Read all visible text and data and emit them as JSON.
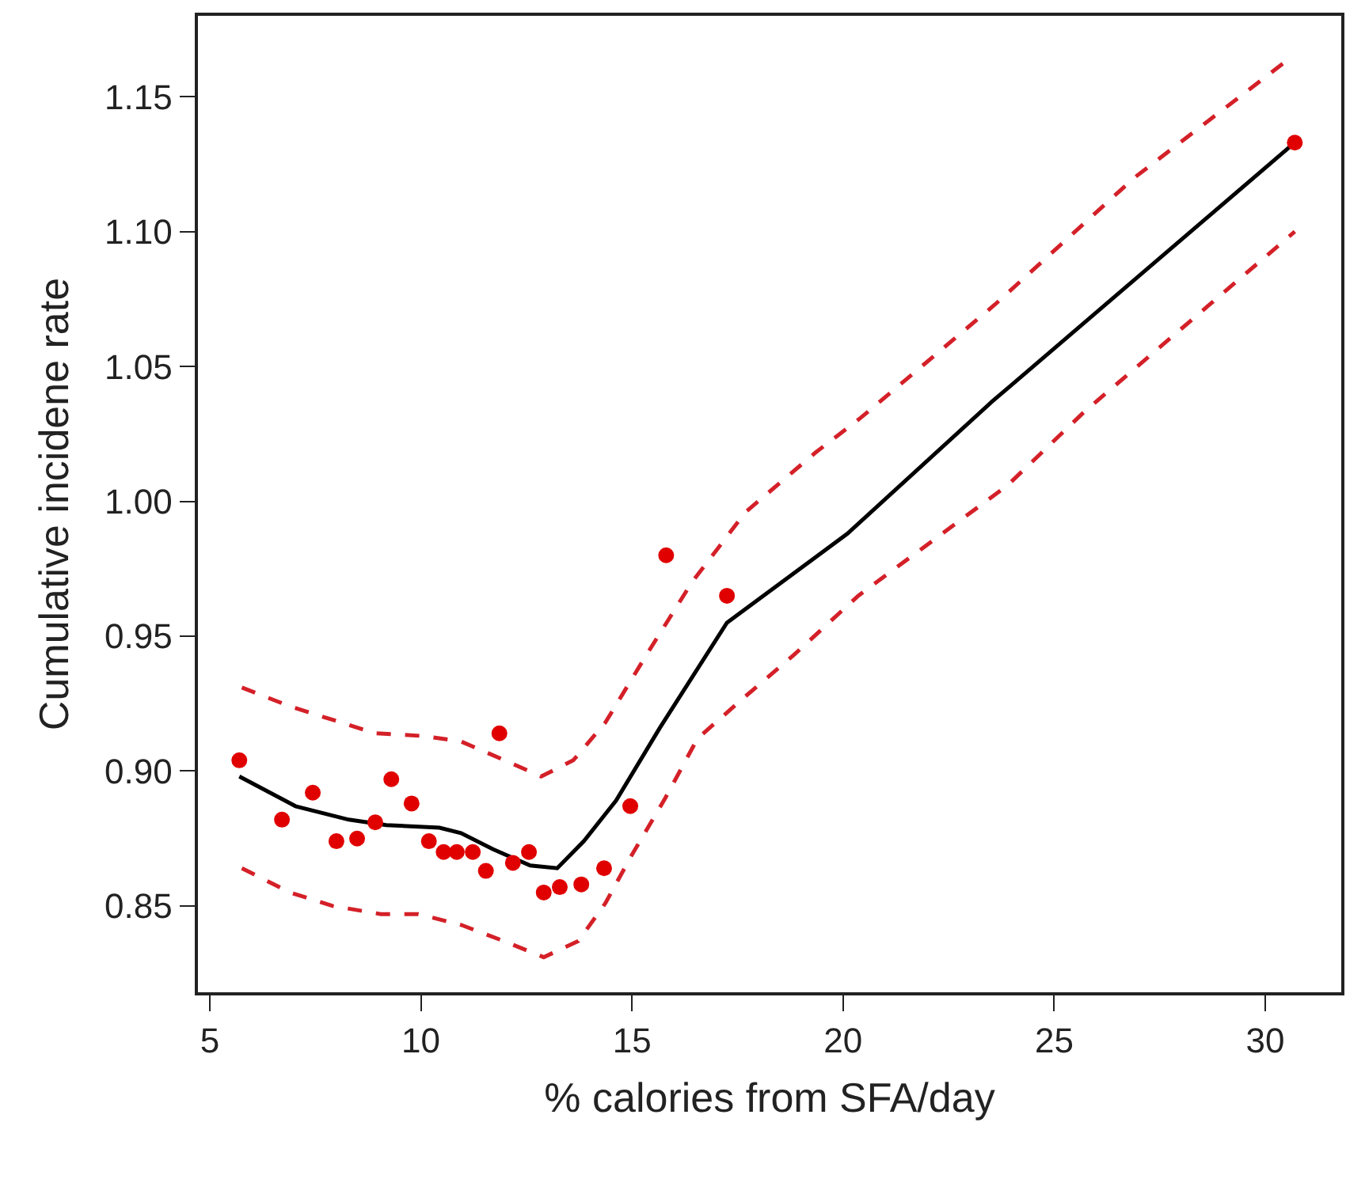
{
  "chart_data": {
    "type": "scatter",
    "xlabel": "% calories from SFA/day",
    "ylabel": "Cumulative incidene rate",
    "xlim": [
      4.72,
      31.8
    ],
    "ylim": [
      0.818,
      1.18
    ],
    "xticks": [
      5,
      10,
      15,
      20,
      25,
      30
    ],
    "yticks": [
      {
        "value": 0.85,
        "label": "0.85"
      },
      {
        "value": 0.9,
        "label": "0.90"
      },
      {
        "value": 0.95,
        "label": "0.95"
      },
      {
        "value": 1.0,
        "label": "1.00"
      },
      {
        "value": 1.05,
        "label": "1.05"
      },
      {
        "value": 1.1,
        "label": "1.10"
      },
      {
        "value": 1.15,
        "label": "1.15"
      }
    ],
    "series": [
      {
        "type": "line",
        "color": "#d42028",
        "line_style": "dashed",
        "marker": "none",
        "x": [
          5.76,
          6.9,
          7.91,
          8.92,
          10.06,
          10.95,
          11.84,
          12.85,
          13.61,
          14.37,
          15.34,
          16.42,
          17.69,
          19.34,
          20.42,
          23.6,
          26.9,
          30.56
        ],
        "values": [
          0.931,
          0.924,
          0.919,
          0.914,
          0.913,
          0.911,
          0.905,
          0.898,
          0.904,
          0.918,
          0.943,
          0.97,
          0.996,
          1.018,
          1.031,
          1.073,
          1.12,
          1.164
        ]
      },
      {
        "type": "line",
        "color": "#d42028",
        "line_style": "dashed",
        "marker": "none",
        "x": [
          5.76,
          6.9,
          7.91,
          9.05,
          9.94,
          10.95,
          11.96,
          12.91,
          13.73,
          14.37,
          15.0,
          15.79,
          16.55,
          17.56,
          18.83,
          20.36,
          22.0,
          23.9,
          25.7,
          30.7
        ],
        "values": [
          0.864,
          0.855,
          0.85,
          0.847,
          0.847,
          0.843,
          0.837,
          0.831,
          0.837,
          0.851,
          0.869,
          0.89,
          0.912,
          0.926,
          0.943,
          0.965,
          0.984,
          1.006,
          1.033,
          1.1
        ]
      },
      {
        "type": "line",
        "color": "#000000",
        "line_style": "solid",
        "marker": "none",
        "x": [
          5.7,
          7.03,
          8.29,
          9.18,
          10.44,
          10.95,
          11.71,
          12.59,
          13.23,
          13.86,
          14.62,
          15.66,
          17.25,
          18.2,
          20.1,
          23.53,
          30.7
        ],
        "values": [
          0.898,
          0.887,
          0.882,
          0.88,
          0.879,
          0.877,
          0.871,
          0.865,
          0.864,
          0.874,
          0.889,
          0.916,
          0.955,
          0.966,
          0.988,
          1.037,
          1.133
        ]
      },
      {
        "color": "#e00000",
        "marker": "circle",
        "x": [
          5.7,
          6.71,
          7.44,
          8.0,
          8.49,
          8.92,
          9.3,
          9.78,
          10.19,
          10.54,
          10.85,
          11.23,
          11.54,
          11.86,
          12.18,
          12.56,
          12.91,
          13.29,
          13.8,
          14.34,
          14.96,
          15.81,
          17.25,
          30.7
        ],
        "values": [
          0.904,
          0.882,
          0.892,
          0.874,
          0.875,
          0.881,
          0.897,
          0.888,
          0.874,
          0.87,
          0.87,
          0.87,
          0.863,
          0.914,
          0.866,
          0.87,
          0.855,
          0.857,
          0.858,
          0.864,
          0.887,
          0.98,
          0.965,
          1.133
        ]
      }
    ]
  }
}
